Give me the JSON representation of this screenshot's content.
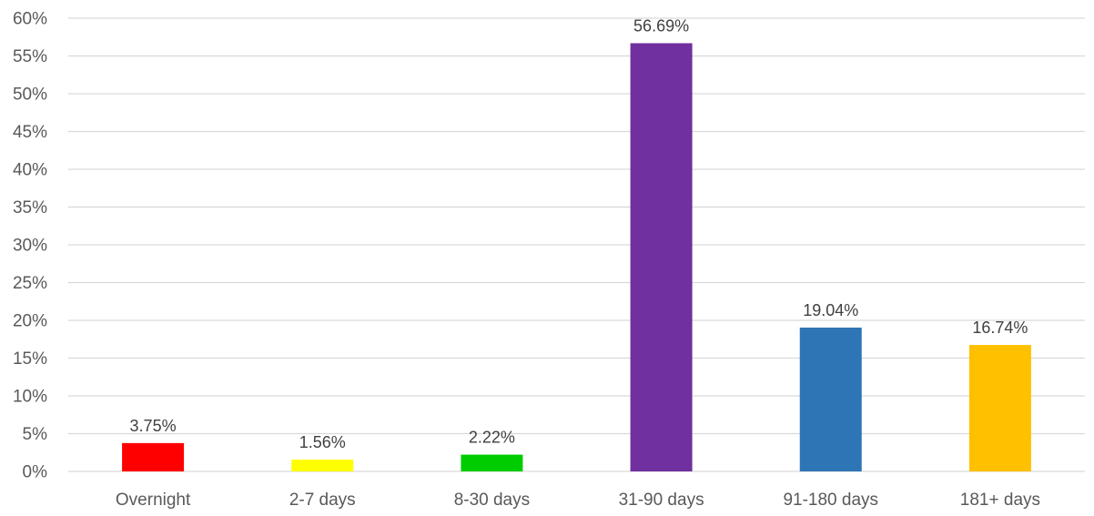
{
  "chart_data": {
    "type": "bar",
    "title": "",
    "xlabel": "",
    "ylabel": "",
    "categories": [
      "Overnight",
      "2-7 days",
      "8-30 days",
      "31-90 days",
      "91-180 days",
      "181+ days"
    ],
    "values": [
      3.75,
      1.56,
      2.22,
      56.69,
      19.04,
      16.74
    ],
    "value_labels": [
      "3.75%",
      "1.56%",
      "2.22%",
      "56.69%",
      "19.04%",
      "16.74%"
    ],
    "bar_colors": [
      "#ff0000",
      "#ffff00",
      "#00cc00",
      "#7030a0",
      "#2e75b6",
      "#ffc000"
    ],
    "ylim": [
      0,
      60
    ],
    "y_ticks": [
      0,
      5,
      10,
      15,
      20,
      25,
      30,
      35,
      40,
      45,
      50,
      55,
      60
    ],
    "y_tick_labels": [
      "0%",
      "5%",
      "10%",
      "15%",
      "20%",
      "25%",
      "30%",
      "35%",
      "40%",
      "45%",
      "50%",
      "55%",
      "60%"
    ],
    "grid": true,
    "legend": "none"
  }
}
